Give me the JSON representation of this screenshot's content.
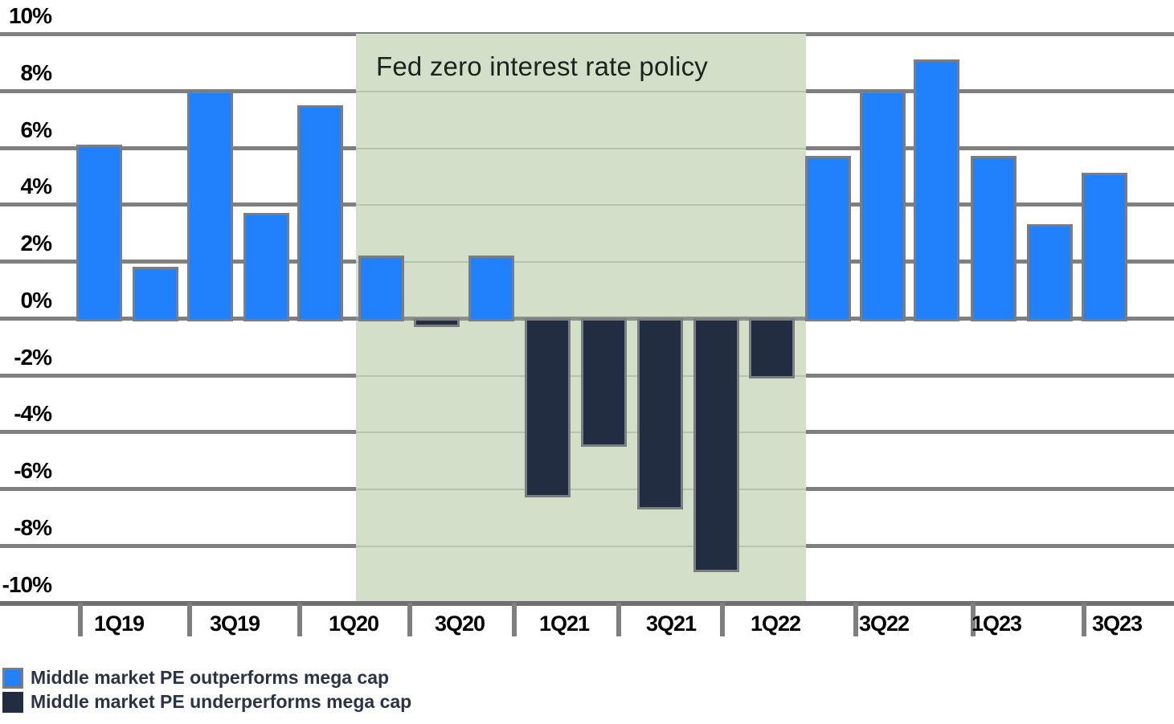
{
  "annotation": {
    "zirp_label": "Fed zero interest rate policy"
  },
  "legend": [
    {
      "name": "outperform",
      "label": "Middle market PE outperforms mega cap",
      "color": "#2180fb"
    },
    {
      "name": "underperform",
      "label": "Middle market PE underperforms mega cap",
      "color": "#232d42"
    }
  ],
  "colors": {
    "outperform_blue": "#2180fb",
    "underperform_navy": "#232d42",
    "zirp_band_green": "#d3dfc9",
    "gridline_gray": "#7f7f7f",
    "legend_text": "#2a3347"
  },
  "chart_data": {
    "type": "bar",
    "x": [
      "1Q19",
      "2Q19",
      "3Q19",
      "4Q19",
      "1Q20",
      "2Q20",
      "3Q20",
      "4Q20",
      "1Q21",
      "2Q21",
      "3Q21",
      "4Q21",
      "1Q22",
      "2Q22",
      "3Q22",
      "4Q22",
      "1Q23",
      "2Q23",
      "3Q23"
    ],
    "values": [
      6.1,
      1.8,
      8.0,
      3.7,
      7.5,
      2.2,
      -0.2,
      2.2,
      -6.2,
      -4.4,
      -6.6,
      -8.8,
      -2.0,
      5.7,
      8.0,
      9.1,
      5.7,
      3.3,
      5.1
    ],
    "series_rule": "positive values drawn in outperform blue, negative values in underperform navy",
    "x_tick_labels": [
      "1Q19",
      "3Q19",
      "1Q20",
      "3Q20",
      "1Q21",
      "3Q21",
      "1Q22",
      "3Q22",
      "1Q23",
      "3Q23"
    ],
    "y_tick_labels": [
      "10%",
      "8%",
      "6%",
      "4%",
      "2%",
      "0%",
      "-2%",
      "-4%",
      "-6%",
      "-8%",
      "-10%"
    ],
    "ylim": [
      -10,
      10
    ],
    "y_step": 2,
    "grid": true,
    "legend_position": "bottom-left",
    "shaded_region": {
      "label": "Fed zero interest rate policy",
      "from": "2Q20",
      "to": "1Q22",
      "color": "#d3dfc9"
    }
  }
}
